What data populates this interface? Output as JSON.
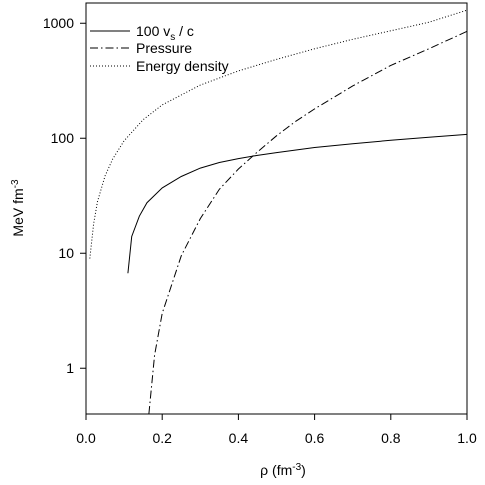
{
  "chart_data": {
    "type": "line",
    "title": "",
    "xlabel": "ρ (fm-3)",
    "ylabel": "MeV fm-3",
    "xlim": [
      0.0,
      1.0
    ],
    "ylim": [
      0.4,
      1500
    ],
    "yscale": "log",
    "grid": false,
    "legend_position": "top-left",
    "x_ticks": [
      0.0,
      0.2,
      0.4,
      0.6,
      0.8,
      1.0
    ],
    "x_tick_labels": [
      "0.0",
      "0.2",
      "0.4",
      "0.6",
      "0.8",
      "1.0"
    ],
    "y_ticks": [
      1,
      10,
      100,
      1000
    ],
    "y_tick_labels": [
      "1",
      "10",
      "100",
      "1000"
    ],
    "legend_labels": {
      "sound_speed": "100 vs / c",
      "pressure": "Pressure",
      "energy_density": "Energy density"
    },
    "series": [
      {
        "name": "100 vs / c",
        "style": "solid",
        "x": [
          0.11,
          0.12,
          0.14,
          0.16,
          0.2,
          0.25,
          0.3,
          0.35,
          0.4,
          0.45,
          0.5,
          0.6,
          0.7,
          0.8,
          0.9,
          1.0
        ],
        "y": [
          6.7,
          14.0,
          21.0,
          27.5,
          37.0,
          46.5,
          55.0,
          61.5,
          66.5,
          71.0,
          75.0,
          83.0,
          89.5,
          96.0,
          102.0,
          108.0
        ]
      },
      {
        "name": "Pressure",
        "style": "dash-dot",
        "x": [
          0.165,
          0.18,
          0.2,
          0.25,
          0.3,
          0.35,
          0.4,
          0.45,
          0.5,
          0.55,
          0.6,
          0.7,
          0.8,
          0.9,
          1.0
        ],
        "y": [
          0.4,
          1.3,
          3.0,
          9.5,
          20.0,
          36.0,
          54.0,
          76.0,
          105.0,
          140.0,
          180.0,
          285.0,
          430.0,
          600.0,
          850.0
        ]
      },
      {
        "name": "Energy density",
        "style": "dotted",
        "x": [
          0.01,
          0.02,
          0.03,
          0.05,
          0.07,
          0.1,
          0.15,
          0.2,
          0.3,
          0.4,
          0.5,
          0.6,
          0.7,
          0.8,
          0.9,
          1.0
        ],
        "y": [
          9.0,
          18.0,
          28.0,
          47.0,
          66.0,
          95.0,
          145.0,
          195.0,
          290.0,
          385.0,
          485.0,
          600.0,
          725.0,
          860.0,
          1020.0,
          1300.0
        ]
      }
    ]
  }
}
